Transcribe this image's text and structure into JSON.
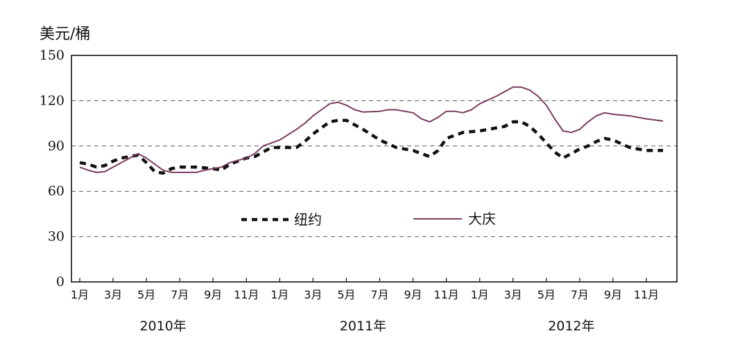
{
  "chart_data": {
    "type": "line",
    "ylabel": "美元/桶",
    "ylim": [
      0,
      150
    ],
    "yticks": [
      0,
      30,
      60,
      90,
      120,
      150
    ],
    "grid": true,
    "grid_style": "dashed-horizontal",
    "legend_position": "center",
    "x_tick_labels": [
      "1月",
      "3月",
      "5月",
      "7月",
      "9月",
      "11月",
      "1月",
      "3月",
      "5月",
      "7月",
      "9月",
      "11月",
      "1月",
      "3月",
      "5月",
      "7月",
      "9月",
      "11月"
    ],
    "x_tick_months": [
      1,
      3,
      5,
      7,
      9,
      11,
      13,
      15,
      17,
      19,
      21,
      23,
      25,
      27,
      29,
      31,
      33,
      35
    ],
    "year_labels": [
      {
        "label": "2010年",
        "center_month": 6
      },
      {
        "label": "2011年",
        "center_month": 18
      },
      {
        "label": "2012年",
        "center_month": 30.5
      }
    ],
    "series": [
      {
        "name": "纽约",
        "color": "#111111",
        "style": "dashed",
        "points": [
          [
            1,
            79
          ],
          [
            1.5,
            78
          ],
          [
            2,
            76
          ],
          [
            2.5,
            77
          ],
          [
            3,
            80
          ],
          [
            3.5,
            82
          ],
          [
            4,
            83
          ],
          [
            4.5,
            84
          ],
          [
            5,
            79
          ],
          [
            5.5,
            73
          ],
          [
            6,
            72
          ],
          [
            6.5,
            75
          ],
          [
            7,
            76
          ],
          [
            8,
            76
          ],
          [
            9,
            75
          ],
          [
            9.5,
            74
          ],
          [
            10,
            78
          ],
          [
            11,
            82
          ],
          [
            11.5,
            83
          ],
          [
            12,
            86
          ],
          [
            12.5,
            89
          ],
          [
            13,
            89
          ],
          [
            14,
            89
          ],
          [
            14.5,
            93
          ],
          [
            15,
            98
          ],
          [
            15.5,
            102
          ],
          [
            16,
            106
          ],
          [
            16.5,
            107
          ],
          [
            17,
            107
          ],
          [
            18,
            101
          ],
          [
            19,
            94
          ],
          [
            20,
            89
          ],
          [
            21,
            87
          ],
          [
            21.5,
            85
          ],
          [
            22,
            83
          ],
          [
            22.5,
            87
          ],
          [
            23,
            95
          ],
          [
            23.5,
            97
          ],
          [
            24,
            99
          ],
          [
            25,
            100
          ],
          [
            26,
            102
          ],
          [
            26.5,
            103
          ],
          [
            27,
            106
          ],
          [
            27.5,
            106
          ],
          [
            28,
            103
          ],
          [
            28.5,
            98
          ],
          [
            29,
            92
          ],
          [
            29.5,
            86
          ],
          [
            30,
            82
          ],
          [
            30.5,
            85
          ],
          [
            31,
            88
          ],
          [
            31.5,
            90
          ],
          [
            32,
            93
          ],
          [
            32.5,
            95
          ],
          [
            33,
            94
          ],
          [
            34,
            89
          ],
          [
            35,
            87
          ],
          [
            36,
            87
          ]
        ]
      },
      {
        "name": "大庆",
        "color": "#7a3a5e",
        "style": "solid",
        "points": [
          [
            1,
            76
          ],
          [
            1.5,
            74
          ],
          [
            2,
            72.5
          ],
          [
            2.5,
            73
          ],
          [
            3,
            76
          ],
          [
            3.5,
            79
          ],
          [
            4,
            82
          ],
          [
            4.5,
            85
          ],
          [
            5,
            82
          ],
          [
            5.5,
            78
          ],
          [
            6,
            74
          ],
          [
            6.5,
            72.5
          ],
          [
            7,
            72.5
          ],
          [
            8,
            72.5
          ],
          [
            8.5,
            74
          ],
          [
            9,
            75
          ],
          [
            9.5,
            76
          ],
          [
            10,
            79
          ],
          [
            11,
            82
          ],
          [
            11.5,
            85
          ],
          [
            12,
            90
          ],
          [
            13,
            94
          ],
          [
            14,
            101
          ],
          [
            14.5,
            105
          ],
          [
            15,
            110
          ],
          [
            15.5,
            114
          ],
          [
            16,
            118
          ],
          [
            16.5,
            119
          ],
          [
            17,
            117
          ],
          [
            17.5,
            114
          ],
          [
            18,
            112.5
          ],
          [
            19,
            113
          ],
          [
            19.5,
            114
          ],
          [
            20,
            114
          ],
          [
            21,
            112
          ],
          [
            21.5,
            108
          ],
          [
            22,
            106
          ],
          [
            22.5,
            109
          ],
          [
            23,
            113
          ],
          [
            23.5,
            113
          ],
          [
            24,
            112
          ],
          [
            24.5,
            114
          ],
          [
            25,
            118
          ],
          [
            26,
            123
          ],
          [
            26.5,
            126
          ],
          [
            27,
            129
          ],
          [
            27.5,
            129
          ],
          [
            28,
            127
          ],
          [
            28.5,
            123
          ],
          [
            29,
            117
          ],
          [
            29.5,
            108
          ],
          [
            30,
            100
          ],
          [
            30.5,
            99
          ],
          [
            31,
            101
          ],
          [
            31.5,
            106
          ],
          [
            32,
            110
          ],
          [
            32.5,
            112
          ],
          [
            33,
            111
          ],
          [
            34,
            110
          ],
          [
            35,
            108
          ],
          [
            36,
            106.5
          ]
        ]
      }
    ]
  }
}
